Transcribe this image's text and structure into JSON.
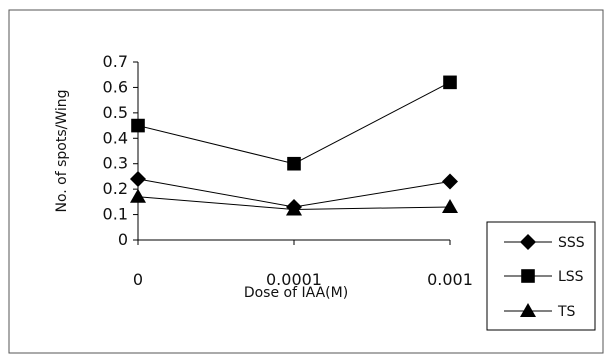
{
  "chart_data": {
    "type": "line",
    "title": "",
    "xlabel": "Dose of IAA(M)",
    "ylabel": "No. of spots/Wing",
    "categories": [
      "0",
      "0.0001",
      "0.001"
    ],
    "ylim": [
      0,
      0.7
    ],
    "yticks": [
      "0",
      "0.1",
      "0.2",
      "0.3",
      "0.4",
      "0.5",
      "0.6",
      "0.7"
    ],
    "grid": false,
    "legend_position": "right",
    "series": [
      {
        "name": "SSS",
        "marker": "diamond",
        "values": [
          0.24,
          0.13,
          0.23
        ]
      },
      {
        "name": "LSS",
        "marker": "square",
        "values": [
          0.45,
          0.3,
          0.62
        ]
      },
      {
        "name": "TS",
        "marker": "triangle",
        "values": [
          0.17,
          0.12,
          0.13
        ]
      }
    ],
    "colors": {
      "line": "#000000",
      "frame": "#555555",
      "background": "#ffffff"
    }
  }
}
